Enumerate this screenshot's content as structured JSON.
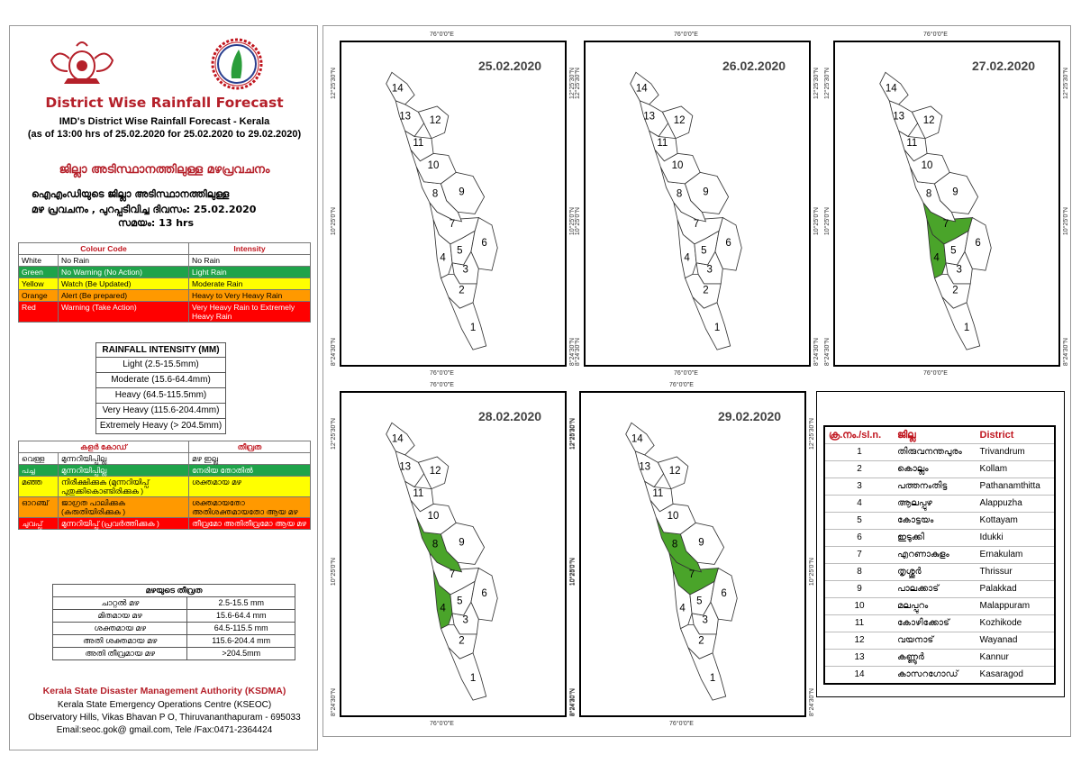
{
  "header": {
    "title": "District Wise Rainfall Forecast",
    "subtitle": "IMD's District Wise Rainfall Forecast - Kerala",
    "issued": "(as of 13:00 hrs of 25.02.2020  for 25.02.2020  to 29.02.2020)",
    "mal_title": "ജില്ലാ അടിസ്ഥാനത്തിലുള്ള  മഴപ്രവചനം",
    "mal_line1": "ഐഎംഡിയുടെ ജില്ലാ    അടിസ്ഥാനത്തിലുള്ള",
    "mal_line2": "മഴ പ്രവചനം , പുറപ്പടിവിച്ച     ദിവസം: 25.02.2020",
    "mal_line3": "സമയം: 13 hrs"
  },
  "colour_code": {
    "headers": [
      "Colour Code",
      "Intensity"
    ],
    "rows": [
      {
        "colour": "White",
        "code": "No Rain",
        "intensity": "No Rain",
        "bg": "#ffffff"
      },
      {
        "colour": "Green",
        "code": "No Warning (No Action)",
        "intensity": "Light Rain",
        "bg": "#1fa34a"
      },
      {
        "colour": "Yellow",
        "code": "Watch (Be Updated)",
        "intensity": "Moderate Rain",
        "bg": "#ffff00"
      },
      {
        "colour": "Orange",
        "code": "Alert (Be prepared)",
        "intensity": "Heavy to Very Heavy Rain",
        "bg": "#ff9900"
      },
      {
        "colour": "Red",
        "code": "Warning (Take Action)",
        "intensity": "Very Heavy Rain to Extremely Heavy Rain",
        "bg": "#ff0000"
      }
    ]
  },
  "rainfall_intensity": {
    "header": "RAINFALL INTENSITY (MM)",
    "rows": [
      "Light (2.5-15.5mm)",
      "Moderate (15.6-64.4mm)",
      "Heavy (64.5-115.5mm)",
      "Very Heavy (115.6-204.4mm)",
      "Extremely Heavy (> 204.5mm)"
    ]
  },
  "mal_colour_code": {
    "headers": [
      "കളർ കോഡ്",
      "തീവ്രത"
    ],
    "rows": [
      {
        "colour": "വെള്ള",
        "code": "മുന്നറിയിപ്പില്ല",
        "intensity": "മഴ ഇല്ല",
        "bg": "#ffffff"
      },
      {
        "colour": "പച്ച",
        "code": "മുന്നറിയിപ്പില്ല",
        "intensity": "നേരിയ തോതിൽ",
        "bg": "#1fa34a"
      },
      {
        "colour": "മഞ്ഞ",
        "code": "നിരീക്ഷിക്കുക (മുന്നറിയിപ്പ് പുതുക്കികൊണ്ടിരിക്കുക )",
        "intensity": "ശക്തമായ മഴ",
        "bg": "#ffff00"
      },
      {
        "colour": "ഓറഞ്ച്",
        "code": "ജാഗ്രത പാലിക്കുക (കരുതിയിരിക്കുക )",
        "intensity": "ശക്തമായതോ അതിശക്തമായതോ ആയ മഴ",
        "bg": "#ff9900"
      },
      {
        "colour": "ചുവപ്പ്",
        "code": "മുന്നറിയിപ്പ് (പ്രവർത്തിക്കുക )",
        "intensity": "തീവ്രമോ അതിതീവ്രമോ ആയ മഴ",
        "bg": "#ff0000"
      }
    ]
  },
  "mal_intensity": {
    "header": "മഴയുടെ തീവ്രത",
    "rows": [
      {
        "label": "ചാറ്റൽ മഴ",
        "range": "2.5-15.5 mm"
      },
      {
        "label": "മിതമായ മഴ",
        "range": "15.6-64.4 mm"
      },
      {
        "label": "ശക്തമായ മഴ",
        "range": "64.5-115.5 mm"
      },
      {
        "label": "അതി ശക്തമായ മഴ",
        "range": "115.6-204.4 mm"
      },
      {
        "label": "അതി തീവ്രമായ മഴ",
        "range": ">204.5mm"
      }
    ]
  },
  "footer": {
    "org": "Kerala State Disaster Management Authority (KSDMA)",
    "line1": "Kerala State Emergency Operations Centre (KSEOC)",
    "line2": "Observatory Hills, Vikas Bhavan P O, Thiruvananthapuram - 695033",
    "line3": "Email:seoc.gok@ gmail.com, Tele /Fax:0471-2364424"
  },
  "map_labels": {
    "lon": "76°0'0\"E",
    "lat_n": "12°25'30\"N",
    "lat_m": "10°25'0\"N",
    "lat_s": "8°24'30\"N"
  },
  "panels": [
    {
      "date": "25.02.2020",
      "green": []
    },
    {
      "date": "26.02.2020",
      "green": []
    },
    {
      "date": "27.02.2020",
      "green": [
        4,
        7
      ]
    },
    {
      "date": "28.02.2020",
      "green": [
        4,
        8
      ]
    },
    {
      "date": "29.02.2020",
      "green": [
        7,
        8
      ]
    }
  ],
  "district_table": {
    "headers": [
      "ക്ര.നം./sl.n.",
      "ജില്ല",
      "District"
    ],
    "rows": [
      {
        "no": "1",
        "mal": "തിരുവനന്തപുരം",
        "en": "Trivandrum"
      },
      {
        "no": "2",
        "mal": "കൊല്ലം",
        "en": "Kollam"
      },
      {
        "no": "3",
        "mal": "പത്തനംതിട്ട",
        "en": "Pathanamthitta"
      },
      {
        "no": "4",
        "mal": "ആലപ്പുഴ",
        "en": "Alappuzha"
      },
      {
        "no": "5",
        "mal": "കോട്ടയം",
        "en": "Kottayam"
      },
      {
        "no": "6",
        "mal": "ഇടുക്കി",
        "en": "Idukki"
      },
      {
        "no": "7",
        "mal": "എറണാകുളം",
        "en": "Ernakulam"
      },
      {
        "no": "8",
        "mal": "തൃശ്ശൂർ",
        "en": "Thrissur"
      },
      {
        "no": "9",
        "mal": "പാലക്കാട്",
        "en": "Palakkad"
      },
      {
        "no": "10",
        "mal": "മലപ്പുറം",
        "en": "Malappuram"
      },
      {
        "no": "11",
        "mal": "കോഴിക്കോട്",
        "en": "Kozhikode"
      },
      {
        "no": "12",
        "mal": "വയനാട്",
        "en": "Wayanad"
      },
      {
        "no": "13",
        "mal": "കണ്ണൂർ",
        "en": "Kannur"
      },
      {
        "no": "14",
        "mal": "കാസറഗോഡ്",
        "en": "Kasaragod"
      }
    ]
  }
}
